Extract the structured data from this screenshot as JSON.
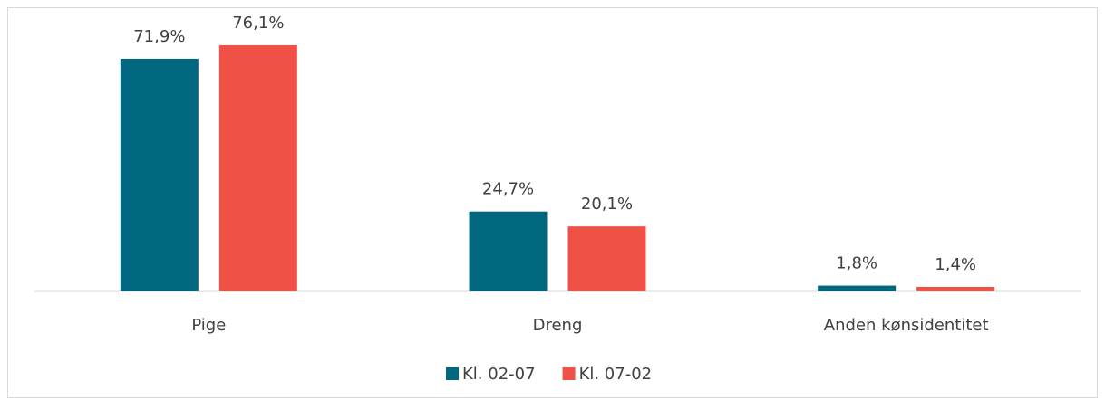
{
  "chart_data": {
    "type": "bar",
    "categories": [
      "Pige",
      "Dreng",
      "Anden kønsidentitet"
    ],
    "series": [
      {
        "name": "Kl. 02-07",
        "color": "#00677f",
        "values": [
          71.9,
          24.7,
          1.8
        ],
        "value_labels": [
          "71,9%",
          "24,7%",
          "1,8%"
        ]
      },
      {
        "name": "Kl. 07-02",
        "color": "#f05146",
        "values": [
          76.1,
          20.1,
          1.4
        ],
        "value_labels": [
          "76,1%",
          "20,1%",
          "1,4%"
        ]
      }
    ]
  }
}
